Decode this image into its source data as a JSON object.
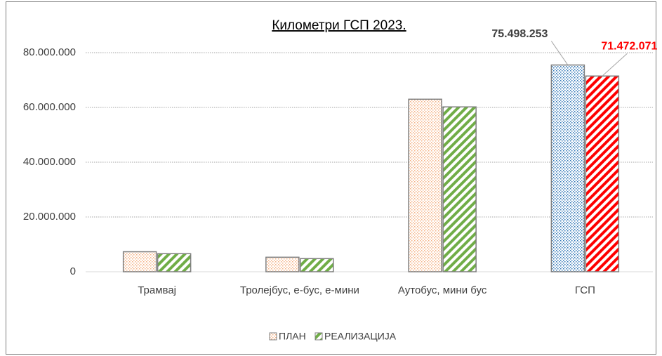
{
  "chart_data": {
    "type": "bar",
    "title": "Километри ГСП 2023.",
    "categories": [
      "Трамвај",
      "Тролејбус, е-бус, е-мини",
      "Аутобус, мини бус",
      "ГСП"
    ],
    "series": [
      {
        "name": "ПЛАН",
        "pattern": "dots",
        "color": "#f4b183",
        "colors": [
          "#f4b183",
          "#f4b183",
          "#f4b183",
          "#2e75b6"
        ],
        "label_color": "#404040",
        "values": [
          7300000,
          5300000,
          63000000,
          75498253
        ],
        "value_labels": [
          null,
          null,
          null,
          "75.498.253"
        ]
      },
      {
        "name": "РЕАЛИЗАЦИЈА",
        "pattern": "stripes",
        "color": "#70ad47",
        "colors": [
          "#70ad47",
          "#70ad47",
          "#70ad47",
          "#ff0000"
        ],
        "label_color": "#ff0000",
        "values": [
          6600000,
          4800000,
          60200000,
          71472071
        ],
        "value_labels": [
          null,
          null,
          null,
          "71.472.071"
        ]
      }
    ],
    "ylim": [
      0,
      80000000
    ],
    "yticks": [
      0,
      {
        "value": 20000000,
        "label": "20.000.000"
      },
      {
        "value": 40000000,
        "label": "40.000.000"
      },
      {
        "value": 60000000,
        "label": "60.000.000"
      },
      {
        "value": 80000000,
        "label": "80.000.000"
      }
    ],
    "grid": true,
    "legend": "bottom"
  }
}
